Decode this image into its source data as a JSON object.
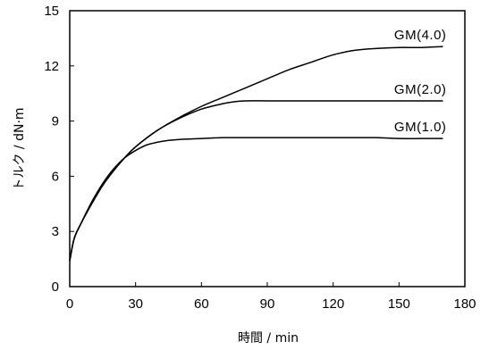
{
  "chart_data": {
    "type": "line",
    "xlabel": "時間 / min",
    "ylabel": "トルク / dN·m",
    "xlim": [
      0,
      180
    ],
    "ylim": [
      0,
      15
    ],
    "xticks": [
      "0",
      "30",
      "60",
      "90",
      "120",
      "150",
      "180"
    ],
    "yticks": [
      "0",
      "3",
      "6",
      "9",
      "12",
      "15"
    ],
    "grid": false,
    "legend": "none",
    "series": [
      {
        "name": "GM(4.0)",
        "x": [
          0,
          2,
          5,
          10,
          15,
          20,
          25,
          30,
          40,
          50,
          60,
          70,
          80,
          90,
          100,
          110,
          120,
          130,
          140,
          150,
          160,
          170
        ],
        "y": [
          1.4,
          2.6,
          3.4,
          4.5,
          5.5,
          6.3,
          7.0,
          7.6,
          8.5,
          9.2,
          9.8,
          10.3,
          10.8,
          11.3,
          11.8,
          12.2,
          12.6,
          12.85,
          12.95,
          13.0,
          13.0,
          13.05
        ]
      },
      {
        "name": "GM(2.0)",
        "x": [
          0,
          2,
          5,
          10,
          15,
          20,
          25,
          30,
          40,
          50,
          60,
          70,
          75,
          80,
          90,
          100,
          110,
          120,
          130,
          140,
          150,
          160,
          170
        ],
        "y": [
          1.4,
          2.6,
          3.4,
          4.5,
          5.5,
          6.3,
          7.0,
          7.6,
          8.5,
          9.15,
          9.65,
          9.95,
          10.05,
          10.1,
          10.1,
          10.1,
          10.1,
          10.1,
          10.1,
          10.1,
          10.1,
          10.1,
          10.1
        ]
      },
      {
        "name": "GM(1.0)",
        "x": [
          0,
          2,
          5,
          10,
          15,
          20,
          25,
          30,
          35,
          40,
          45,
          50,
          60,
          70,
          80,
          90,
          100,
          110,
          120,
          130,
          140,
          150,
          160,
          170
        ],
        "y": [
          1.4,
          2.6,
          3.4,
          4.6,
          5.6,
          6.4,
          7.0,
          7.4,
          7.7,
          7.85,
          7.95,
          8.0,
          8.05,
          8.1,
          8.1,
          8.1,
          8.1,
          8.1,
          8.1,
          8.1,
          8.1,
          8.05,
          8.05,
          8.05
        ]
      }
    ]
  }
}
